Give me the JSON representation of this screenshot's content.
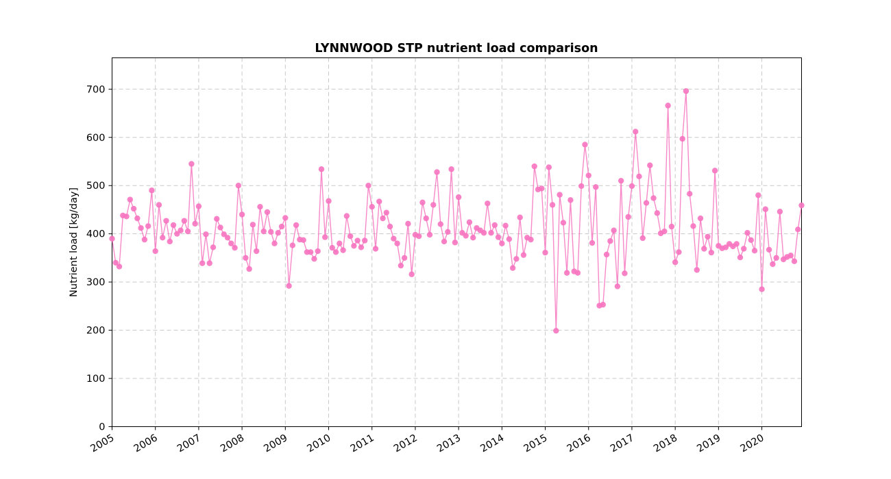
{
  "chart_data": {
    "type": "line",
    "title": "LYNNWOOD STP nutrient load comparison",
    "xlabel": "",
    "ylabel": "Nutrient load [kg/day]",
    "series_color": "#f774c0",
    "xlim": [
      "2005-01",
      "2020-12"
    ],
    "ylim": [
      0,
      765
    ],
    "grid": true,
    "x_ticks": [
      "2005",
      "2006",
      "2007",
      "2008",
      "2009",
      "2010",
      "2011",
      "2012",
      "2013",
      "2014",
      "2015",
      "2016",
      "2017",
      "2018",
      "2019",
      "2020"
    ],
    "y_ticks": [
      0,
      100,
      200,
      300,
      400,
      500,
      600,
      700
    ],
    "series": [
      {
        "name": "",
        "x": [
          "2005-01",
          "2005-02",
          "2005-03",
          "2005-04",
          "2005-05",
          "2005-06",
          "2005-07",
          "2005-08",
          "2005-09",
          "2005-10",
          "2005-11",
          "2005-12",
          "2006-01",
          "2006-02",
          "2006-03",
          "2006-04",
          "2006-05",
          "2006-06",
          "2006-07",
          "2006-08",
          "2006-09",
          "2006-10",
          "2006-11",
          "2006-12",
          "2007-01",
          "2007-02",
          "2007-03",
          "2007-04",
          "2007-05",
          "2007-06",
          "2007-07",
          "2007-08",
          "2007-09",
          "2007-10",
          "2007-11",
          "2007-12",
          "2008-01",
          "2008-02",
          "2008-03",
          "2008-04",
          "2008-05",
          "2008-06",
          "2008-07",
          "2008-08",
          "2008-09",
          "2008-10",
          "2008-11",
          "2008-12",
          "2009-01",
          "2009-02",
          "2009-03",
          "2009-04",
          "2009-05",
          "2009-06",
          "2009-07",
          "2009-08",
          "2009-09",
          "2009-10",
          "2009-11",
          "2009-12",
          "2010-01",
          "2010-02",
          "2010-03",
          "2010-04",
          "2010-05",
          "2010-06",
          "2010-07",
          "2010-08",
          "2010-09",
          "2010-10",
          "2010-11",
          "2010-12",
          "2011-01",
          "2011-02",
          "2011-03",
          "2011-04",
          "2011-05",
          "2011-06",
          "2011-07",
          "2011-08",
          "2011-09",
          "2011-10",
          "2011-11",
          "2011-12",
          "2012-01",
          "2012-02",
          "2012-03",
          "2012-04",
          "2012-05",
          "2012-06",
          "2012-07",
          "2012-08",
          "2012-09",
          "2012-10",
          "2012-11",
          "2012-12",
          "2013-01",
          "2013-02",
          "2013-03",
          "2013-04",
          "2013-05",
          "2013-06",
          "2013-07",
          "2013-08",
          "2013-09",
          "2013-10",
          "2013-11",
          "2013-12",
          "2014-01",
          "2014-02",
          "2014-03",
          "2014-04",
          "2014-05",
          "2014-06",
          "2014-07",
          "2014-08",
          "2014-09",
          "2014-10",
          "2014-11",
          "2014-12",
          "2015-01",
          "2015-02",
          "2015-03",
          "2015-04",
          "2015-05",
          "2015-06",
          "2015-07",
          "2015-08",
          "2015-09",
          "2015-10",
          "2015-11",
          "2015-12",
          "2016-01",
          "2016-02",
          "2016-03",
          "2016-04",
          "2016-05",
          "2016-06",
          "2016-07",
          "2016-08",
          "2016-09",
          "2016-10",
          "2016-11",
          "2016-12",
          "2017-01",
          "2017-02",
          "2017-03",
          "2017-04",
          "2017-05",
          "2017-06",
          "2017-07",
          "2017-08",
          "2017-09",
          "2017-10",
          "2017-11",
          "2017-12",
          "2018-01",
          "2018-02",
          "2018-03",
          "2018-04",
          "2018-05",
          "2018-06",
          "2018-07",
          "2018-08",
          "2018-09",
          "2018-10",
          "2018-11",
          "2018-12",
          "2019-01",
          "2019-02",
          "2019-03",
          "2019-04",
          "2019-05",
          "2019-06",
          "2019-07",
          "2019-08",
          "2019-09",
          "2019-10",
          "2019-11",
          "2019-12",
          "2020-01",
          "2020-02",
          "2020-03",
          "2020-04",
          "2020-05",
          "2020-06",
          "2020-07",
          "2020-08",
          "2020-09",
          "2020-10",
          "2020-11",
          "2020-12"
        ],
        "values": [
          390,
          340,
          332,
          438,
          436,
          471,
          452,
          432,
          412,
          388,
          416,
          490,
          364,
          460,
          392,
          427,
          384,
          418,
          400,
          407,
          427,
          405,
          545,
          421,
          457,
          339,
          399,
          339,
          372,
          431,
          413,
          399,
          392,
          380,
          371,
          500,
          440,
          350,
          327,
          419,
          364,
          456,
          405,
          445,
          404,
          380,
          402,
          415,
          433,
          292,
          376,
          418,
          388,
          387,
          362,
          362,
          348,
          364,
          534,
          393,
          468,
          371,
          362,
          380,
          366,
          437,
          395,
          375,
          386,
          372,
          386,
          500,
          456,
          369,
          467,
          432,
          444,
          415,
          390,
          380,
          334,
          350,
          421,
          316,
          398,
          395,
          465,
          432,
          398,
          460,
          528,
          420,
          384,
          404,
          534,
          382,
          476,
          402,
          396,
          424,
          392,
          412,
          407,
          402,
          463,
          402,
          418,
          393,
          380,
          417,
          389,
          329,
          348,
          434,
          356,
          392,
          388,
          540,
          492,
          494,
          361,
          538,
          460,
          199,
          481,
          423,
          319,
          470,
          322,
          319,
          499,
          585,
          521,
          381,
          497,
          251,
          253,
          357,
          385,
          407,
          291,
          510,
          318,
          435,
          499,
          612,
          519,
          391,
          464,
          542,
          474,
          443,
          401,
          405,
          666,
          415,
          341,
          362,
          597,
          696,
          483,
          416,
          325,
          432,
          369,
          394,
          361,
          531,
          375,
          370,
          372,
          379,
          374,
          379,
          351,
          369,
          402,
          387,
          365,
          480,
          285,
          451,
          367,
          337,
          350,
          446,
          347,
          352,
          355,
          343,
          409,
          459
        ]
      }
    ]
  }
}
